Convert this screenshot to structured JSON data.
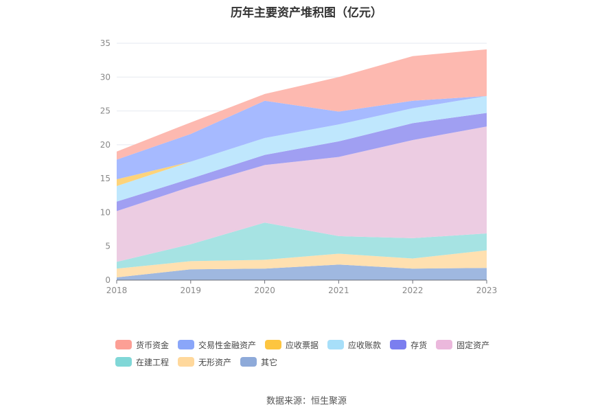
{
  "chart_data": {
    "type": "area",
    "title": "历年主要资产堆积图（亿元）",
    "x": [
      "2018",
      "2019",
      "2020",
      "2021",
      "2022",
      "2023"
    ],
    "ylim": [
      0,
      35
    ],
    "yticks": [
      "0",
      "5",
      "10",
      "15",
      "20",
      "25",
      "30",
      "35"
    ],
    "stacked": true,
    "legend_position": "bottom",
    "series": [
      {
        "name": "其它",
        "color": "#9fb8e0",
        "values": [
          0.4,
          1.6,
          1.7,
          2.3,
          1.7,
          1.8
        ]
      },
      {
        "name": "无形资产",
        "color": "#ffe0b0",
        "values": [
          1.3,
          1.2,
          1.3,
          1.6,
          1.5,
          2.6
        ]
      },
      {
        "name": "在建工程",
        "color": "#a6e3e3",
        "values": [
          1.0,
          2.5,
          5.5,
          2.6,
          3.0,
          2.5
        ]
      },
      {
        "name": "固定资产",
        "color": "#eccce2",
        "values": [
          7.5,
          8.5,
          8.5,
          11.7,
          14.5,
          15.8
        ]
      },
      {
        "name": "存货",
        "color": "#a09ff2",
        "values": [
          1.4,
          1.2,
          1.5,
          2.3,
          2.5,
          2.0
        ]
      },
      {
        "name": "应收账款",
        "color": "#bfe7fd",
        "values": [
          2.3,
          2.5,
          2.5,
          2.5,
          2.2,
          2.5
        ]
      },
      {
        "name": "应收票据",
        "color": "#fdd37a",
        "values": [
          1.0,
          0.0,
          0.0,
          0.0,
          0.0,
          0.0
        ]
      },
      {
        "name": "交易性金融资产",
        "color": "#a6baff",
        "values": [
          2.9,
          4.1,
          5.5,
          1.9,
          1.1,
          0.0
        ]
      },
      {
        "name": "货币资金",
        "color": "#fdb9b0",
        "values": [
          1.2,
          1.7,
          1.0,
          5.1,
          6.6,
          6.9
        ]
      }
    ],
    "legend_order": [
      "货币资金",
      "交易性金融资产",
      "应收票据",
      "应收账款",
      "存货",
      "固定资产",
      "在建工程",
      "无形资产",
      "其它"
    ],
    "legend_colors": {
      "货币资金": "#fc9f95",
      "交易性金融资产": "#8aa6f9",
      "应收票据": "#fdc540",
      "应收账款": "#a7dff9",
      "存货": "#7b7eef",
      "固定资产": "#ebb8dc",
      "在建工程": "#80d7d7",
      "无形资产": "#ffd89c",
      "其它": "#8eaad9"
    }
  },
  "source": "数据来源：恒生聚源"
}
